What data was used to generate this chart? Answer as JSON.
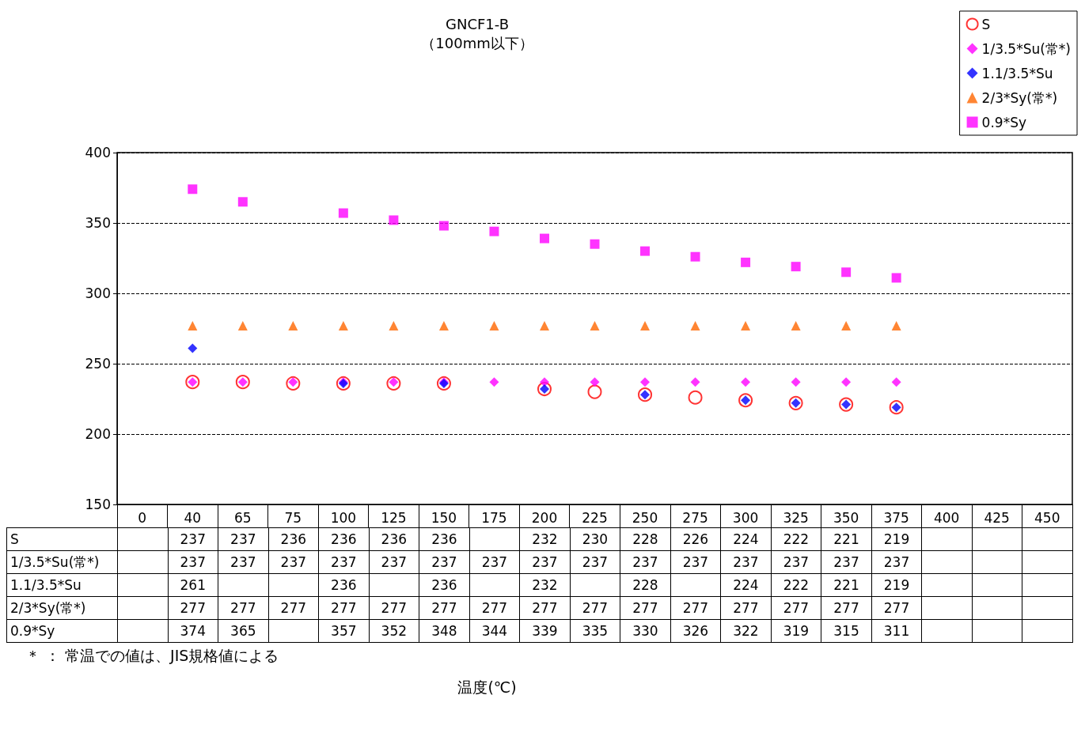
{
  "chart_data": {
    "type": "scatter",
    "title": "GNCF1-B",
    "subtitle": "（100mm以下）",
    "categories": [
      "0",
      "40",
      "65",
      "75",
      "100",
      "125",
      "150",
      "175",
      "200",
      "225",
      "250",
      "275",
      "300",
      "325",
      "350",
      "375",
      "400",
      "425",
      "450"
    ],
    "series": [
      {
        "name": "S",
        "color": "#ff0000",
        "marker": "circle",
        "values": [
          null,
          237,
          237,
          236,
          236,
          236,
          236,
          null,
          232,
          230,
          228,
          226,
          224,
          222,
          221,
          219,
          null,
          null,
          null
        ]
      },
      {
        "name": "1/3.5*Su(常*)",
        "color": "#ff00ff",
        "marker": "diamond",
        "values": [
          null,
          237,
          237,
          237,
          237,
          237,
          237,
          237,
          237,
          237,
          237,
          237,
          237,
          237,
          237,
          237,
          null,
          null,
          null
        ]
      },
      {
        "name": "1.1/3.5*Su",
        "color": "#0000ff",
        "marker": "diamond",
        "values": [
          null,
          261,
          null,
          null,
          236,
          null,
          236,
          null,
          232,
          null,
          228,
          null,
          224,
          222,
          221,
          219,
          null,
          null,
          null
        ]
      },
      {
        "name": "2/3*Sy(常*)",
        "color": "#ff6600",
        "marker": "triangle",
        "values": [
          null,
          277,
          277,
          277,
          277,
          277,
          277,
          277,
          277,
          277,
          277,
          277,
          277,
          277,
          277,
          277,
          null,
          null,
          null
        ]
      },
      {
        "name": "0.9*Sy",
        "color": "#ff00ff",
        "marker": "square",
        "values": [
          null,
          374,
          365,
          null,
          357,
          352,
          348,
          344,
          339,
          335,
          330,
          326,
          322,
          319,
          315,
          311,
          null,
          null,
          null
        ]
      }
    ],
    "ylim": [
      150,
      400
    ],
    "yticks": [
      150,
      200,
      250,
      300,
      350,
      400
    ],
    "grid": "y",
    "legend": "top right",
    "data_labels": true,
    "annotations": [
      "＊ ： 常温での値は、JIS規格値による",
      "温度(℃)"
    ]
  }
}
